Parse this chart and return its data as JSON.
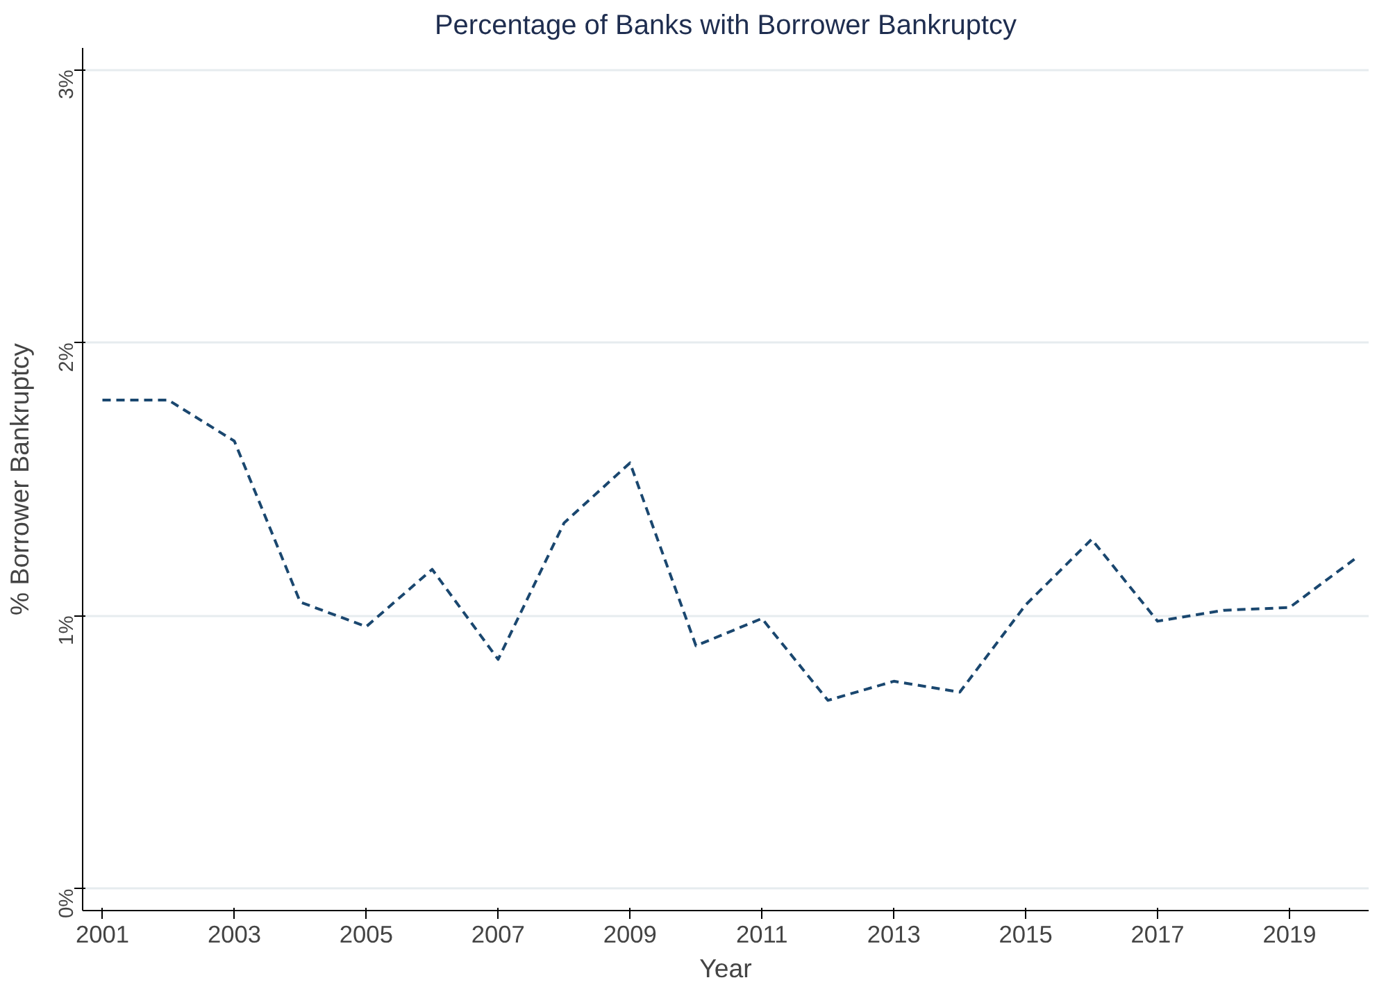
{
  "chart_data": {
    "type": "line",
    "title": "Percentage of Banks with Borrower Bankruptcy",
    "xlabel": "Year",
    "ylabel": "% Borrower Bankruptcy",
    "x": [
      2001,
      2002,
      2003,
      2004,
      2005,
      2006,
      2007,
      2008,
      2009,
      2010,
      2011,
      2012,
      2013,
      2014,
      2015,
      2016,
      2017,
      2018,
      2019,
      2020
    ],
    "series": [
      {
        "color": "#1a476f",
        "values": [
          1.79,
          1.79,
          1.64,
          1.05,
          0.96,
          1.17,
          0.84,
          1.34,
          1.56,
          0.89,
          0.99,
          0.69,
          0.76,
          0.72,
          1.04,
          1.28,
          0.98,
          1.02,
          1.03,
          1.21
        ]
      }
    ],
    "xlim": [
      2000.7,
      2020.2
    ],
    "xticks": [
      2001,
      2003,
      2005,
      2007,
      2009,
      2011,
      2013,
      2015,
      2017,
      2019
    ],
    "ylim": [
      -0.08,
      3.08
    ],
    "yticks": [
      {
        "value": 0,
        "label": "0%"
      },
      {
        "value": 1,
        "label": "1%"
      },
      {
        "value": 2,
        "label": "2%"
      },
      {
        "value": 3,
        "label": "3%"
      }
    ],
    "grid": "y",
    "line_style": "dashed"
  }
}
